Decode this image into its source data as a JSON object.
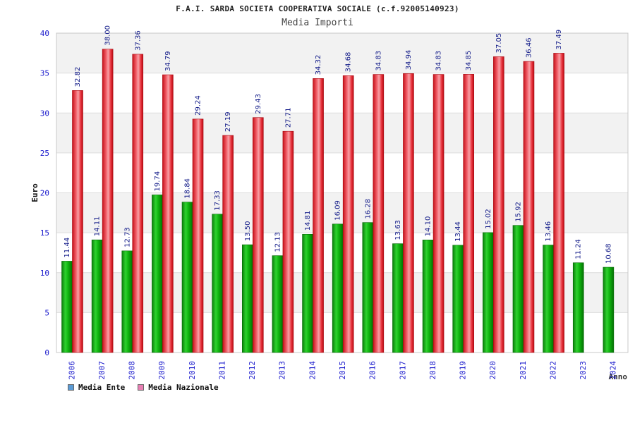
{
  "chart_data": {
    "type": "bar",
    "title": "F.A.I. SARDA SOCIETA COOPERATIVA SOCIALE (c.f.92005140923)",
    "subtitle": "Media Importi",
    "xlabel": "Anno",
    "ylabel": "Euro",
    "ylim": [
      0,
      40
    ],
    "yticks": [
      0,
      5,
      10,
      15,
      20,
      25,
      30,
      35,
      40
    ],
    "grid": true,
    "legend_position": "bottom-left",
    "categories": [
      "2006",
      "2007",
      "2008",
      "2009",
      "2010",
      "2011",
      "2012",
      "2013",
      "2014",
      "2015",
      "2016",
      "2017",
      "2018",
      "2019",
      "2020",
      "2021",
      "2022",
      "2023",
      "2024"
    ],
    "series": [
      {
        "name": "Media Ente",
        "color": "#00aa00",
        "legend_color": "#5b9bd5",
        "values": [
          11.44,
          14.11,
          12.73,
          19.74,
          18.84,
          17.33,
          13.5,
          12.13,
          14.81,
          16.09,
          16.28,
          13.63,
          14.1,
          13.44,
          15.02,
          15.92,
          13.46,
          11.24,
          10.68
        ],
        "labels": [
          "11.44",
          "14.11",
          "12.73",
          "19.74",
          "18.84",
          "17.33",
          "13.50",
          "12.13",
          "14.81",
          "16.09",
          "16.28",
          "13.63",
          "14.10",
          "13.44",
          "15.02",
          "15.92",
          "13.46",
          "11.24",
          "10.68"
        ]
      },
      {
        "name": "Media Nazionale",
        "color": "#e8202a",
        "legend_color": "#e77fb3",
        "values": [
          32.82,
          38.0,
          37.36,
          34.79,
          29.24,
          27.19,
          29.43,
          27.71,
          34.32,
          34.68,
          34.83,
          34.94,
          34.83,
          34.85,
          37.05,
          36.46,
          37.49,
          null,
          null
        ],
        "labels": [
          "32.82",
          "38.00",
          "37.36",
          "34.79",
          "29.24",
          "27.19",
          "29.43",
          "27.71",
          "34.32",
          "34.68",
          "34.83",
          "34.94",
          "34.83",
          "34.85",
          "37.05",
          "36.46",
          "37.49",
          "",
          ""
        ]
      }
    ]
  }
}
